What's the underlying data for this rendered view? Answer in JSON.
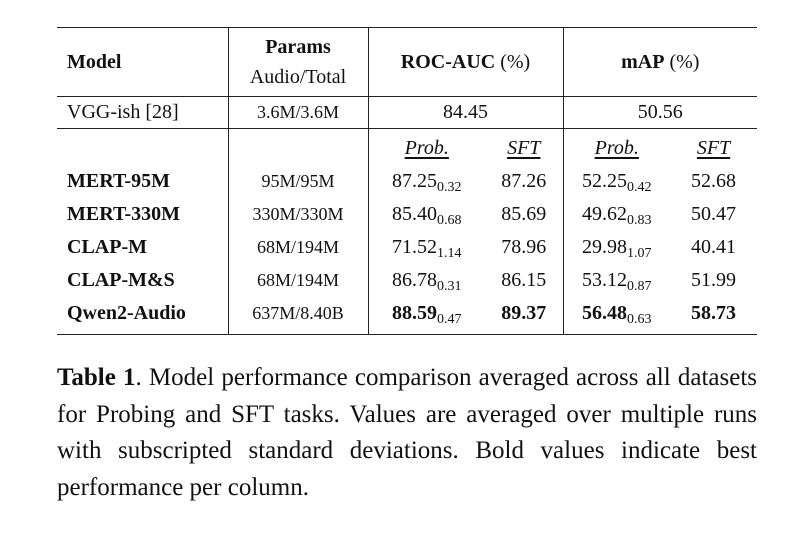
{
  "table": {
    "header": {
      "model": "Model",
      "params": "Params",
      "params_sub": "Audio/Total",
      "roc": "ROC-AUC",
      "roc_unit": "(%)",
      "map": "mAP",
      "map_unit": "(%)"
    },
    "baseline": {
      "model": "VGG-ish [28]",
      "params": "3.6M/3.6M",
      "roc": "84.45",
      "map": "50.56"
    },
    "subheader": [
      "Prob.",
      "SFT",
      "Prob.",
      "SFT"
    ],
    "rows": [
      {
        "model": "MERT-95M",
        "params": "95M/95M",
        "roc_prob": "87.25",
        "roc_prob_sd": "0.32",
        "roc_sft": "87.26",
        "map_prob": "52.25",
        "map_prob_sd": "0.42",
        "map_sft": "52.68"
      },
      {
        "model": "MERT-330M",
        "params": "330M/330M",
        "roc_prob": "85.40",
        "roc_prob_sd": "0.68",
        "roc_sft": "85.69",
        "map_prob": "49.62",
        "map_prob_sd": "0.83",
        "map_sft": "50.47"
      },
      {
        "model": "CLAP-M",
        "params": "68M/194M",
        "roc_prob": "71.52",
        "roc_prob_sd": "1.14",
        "roc_sft": "78.96",
        "map_prob": "29.98",
        "map_prob_sd": "1.07",
        "map_sft": "40.41"
      },
      {
        "model": "CLAP-M&S",
        "params": "68M/194M",
        "roc_prob": "86.78",
        "roc_prob_sd": "0.31",
        "roc_sft": "86.15",
        "map_prob": "53.12",
        "map_prob_sd": "0.87",
        "map_sft": "51.99"
      },
      {
        "model": "Qwen2-Audio",
        "params": "637M/8.40B",
        "roc_prob": "88.59",
        "roc_prob_sd": "0.47",
        "roc_sft": "89.37",
        "map_prob": "56.48",
        "map_prob_sd": "0.63",
        "map_sft": "58.73",
        "bold": true
      }
    ]
  },
  "caption": {
    "label": "Table 1",
    "text": ". Model performance comparison averaged across all datasets for Probing and SFT tasks. Values are averaged over multiple runs with subscripted standard deviations. Bold values indicate best performance per column."
  }
}
